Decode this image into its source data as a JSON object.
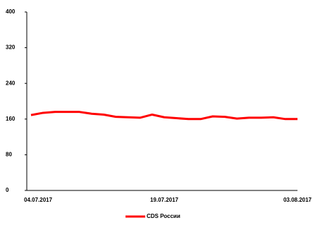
{
  "chart_data": {
    "type": "line",
    "x": [
      "04.07.2017",
      null,
      null,
      null,
      null,
      null,
      null,
      null,
      null,
      null,
      null,
      "19.07.2017",
      null,
      null,
      null,
      null,
      null,
      null,
      null,
      null,
      null,
      null,
      "03.08.2017"
    ],
    "series": [
      {
        "name": "CDS России",
        "color": "#ff0000",
        "values": [
          169,
          174,
          176,
          176,
          176,
          172,
          170,
          165,
          164,
          163,
          170,
          164,
          162,
          160,
          160,
          166,
          165,
          161,
          163,
          163,
          164,
          160,
          160
        ]
      }
    ],
    "ylim": [
      0,
      400
    ],
    "yticks": [
      0,
      80,
      160,
      240,
      320,
      400
    ],
    "grid": false,
    "legend": "bottom"
  }
}
